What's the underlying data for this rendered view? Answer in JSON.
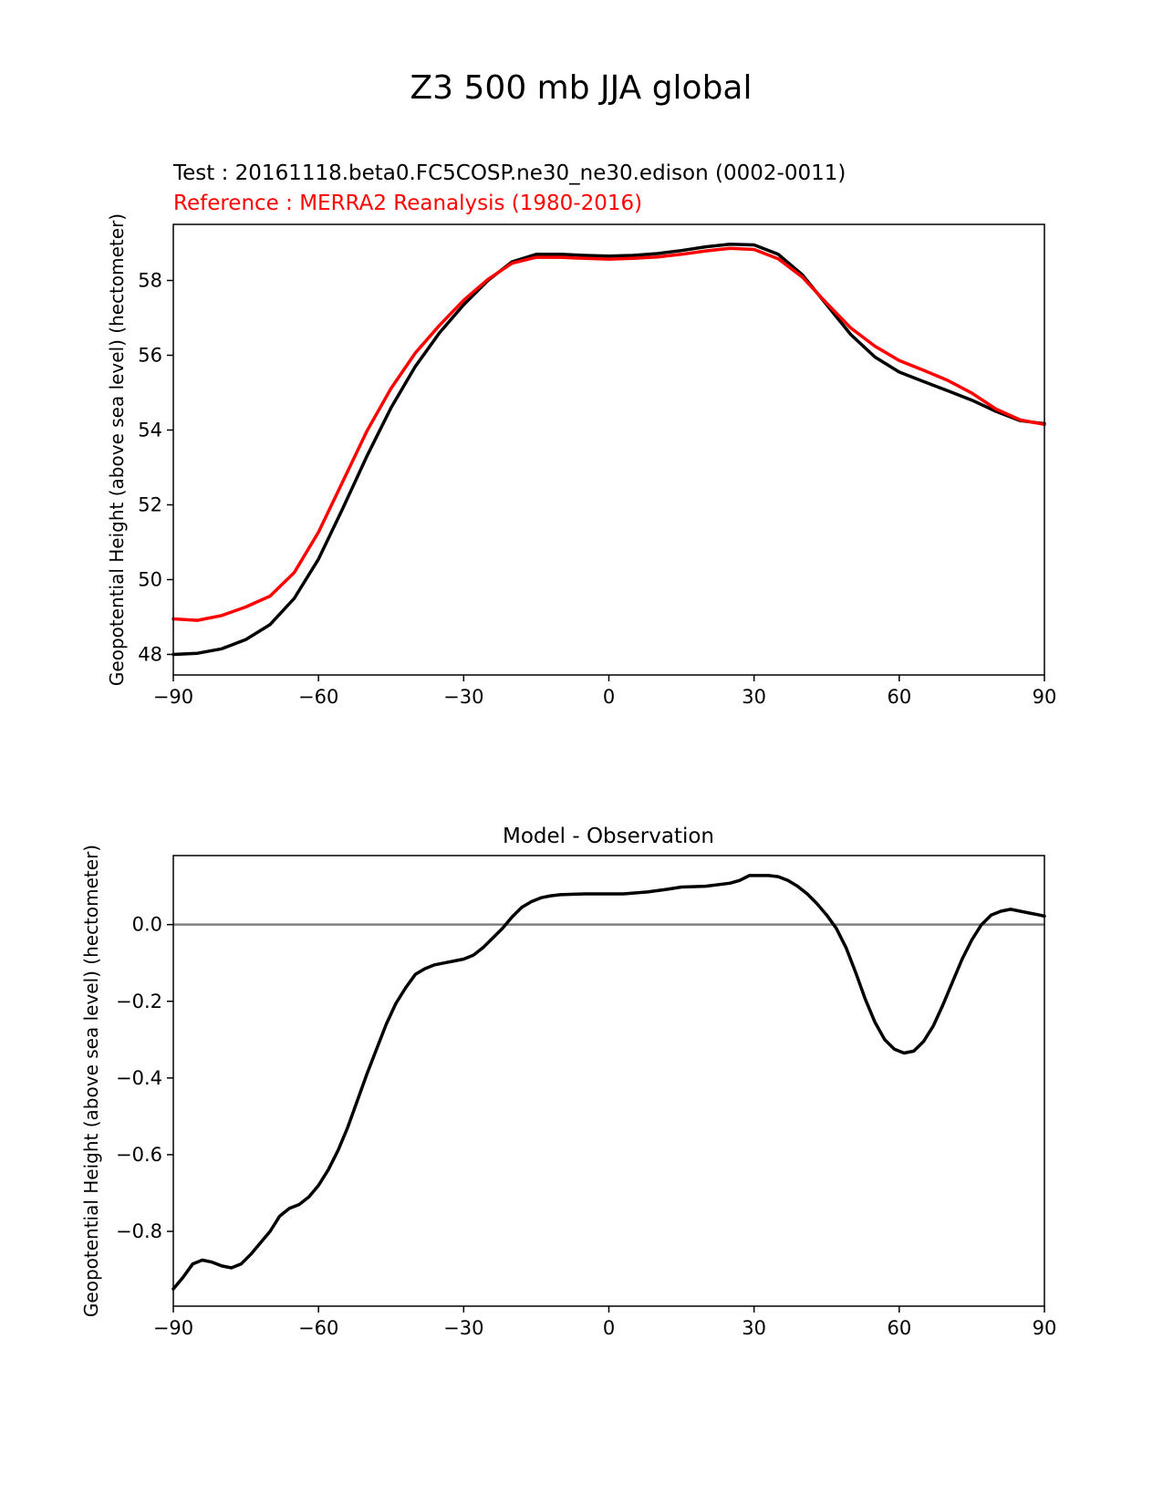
{
  "figure_title": "Z3 500 mb JJA global",
  "colors": {
    "test": "#000000",
    "reference": "#ff0000",
    "zero_line": "#808080"
  },
  "chart_data": [
    {
      "type": "line",
      "test_label": "Test : 20161118.beta0.FC5COSP.ne30_ne30.edison (0002-0011)",
      "reference_label": "Reference : MERRA2 Reanalysis (1980-2016)",
      "xlabel": "",
      "ylabel": "Geopotential Height (above sea level) (hectometer)",
      "xlim": [
        -90,
        90
      ],
      "ylim": [
        47.45,
        59.5
      ],
      "xticks": [
        -90,
        -60,
        -30,
        0,
        30,
        60,
        90
      ],
      "xtick_labels": [
        "−90",
        "−60",
        "−30",
        "0",
        "30",
        "60",
        "90"
      ],
      "yticks": [
        48,
        50,
        52,
        54,
        56,
        58
      ],
      "ytick_labels": [
        "48",
        "50",
        "52",
        "54",
        "56",
        "58"
      ],
      "series": [
        {
          "name": "Test",
          "color": "#000000",
          "x": [
            -90,
            -85,
            -80,
            -75,
            -70,
            -65,
            -60,
            -55,
            -50,
            -45,
            -40,
            -35,
            -30,
            -25,
            -20,
            -15,
            -10,
            -5,
            0,
            5,
            10,
            15,
            20,
            25,
            30,
            35,
            40,
            45,
            50,
            55,
            60,
            65,
            70,
            75,
            80,
            85,
            90
          ],
          "y": [
            48.0,
            48.03,
            48.15,
            48.4,
            48.8,
            49.5,
            50.55,
            51.9,
            53.3,
            54.6,
            55.7,
            56.6,
            57.35,
            58.0,
            58.5,
            58.7,
            58.7,
            58.67,
            58.65,
            58.67,
            58.72,
            58.8,
            58.9,
            58.97,
            58.95,
            58.7,
            58.15,
            57.35,
            56.55,
            55.95,
            55.55,
            55.3,
            55.05,
            54.8,
            54.5,
            54.25,
            54.17
          ]
        },
        {
          "name": "Reference",
          "color": "#ff0000",
          "x": [
            -90,
            -85,
            -80,
            -75,
            -70,
            -65,
            -60,
            -55,
            -50,
            -45,
            -40,
            -35,
            -30,
            -25,
            -20,
            -15,
            -10,
            -5,
            0,
            5,
            10,
            15,
            20,
            25,
            30,
            35,
            40,
            45,
            50,
            55,
            60,
            65,
            70,
            75,
            80,
            85,
            90
          ],
          "y": [
            48.95,
            48.91,
            49.04,
            49.27,
            49.56,
            50.19,
            51.27,
            52.62,
            53.97,
            55.12,
            56.06,
            56.8,
            57.47,
            58.03,
            58.46,
            58.62,
            58.62,
            58.59,
            58.57,
            58.59,
            58.63,
            58.7,
            58.79,
            58.86,
            58.83,
            58.58,
            58.09,
            57.39,
            56.73,
            56.24,
            55.86,
            55.6,
            55.33,
            54.99,
            54.56,
            54.27,
            54.15
          ]
        }
      ]
    },
    {
      "type": "line",
      "title": "Model - Observation",
      "xlabel": "",
      "ylabel": "Geopotential Height (above sea level) (hectometer)",
      "xlim": [
        -90,
        90
      ],
      "ylim": [
        -0.995,
        0.18
      ],
      "xticks": [
        -90,
        -60,
        -30,
        0,
        30,
        60,
        90
      ],
      "xtick_labels": [
        "−90",
        "−60",
        "−30",
        "0",
        "30",
        "60",
        "90"
      ],
      "yticks": [
        0.0,
        -0.2,
        -0.4,
        -0.6,
        -0.8
      ],
      "ytick_labels": [
        "0.0",
        "−0.2",
        "−0.4",
        "−0.6",
        "−0.8"
      ],
      "zero_line": 0.0,
      "series": [
        {
          "name": "Model - Observation",
          "color": "#000000",
          "x": [
            -90,
            -88,
            -86,
            -84,
            -82,
            -80,
            -78,
            -76,
            -74,
            -72,
            -70,
            -68,
            -66,
            -64,
            -62,
            -60,
            -58,
            -56,
            -54,
            -52,
            -50,
            -48,
            -46,
            -44,
            -42,
            -40,
            -38,
            -36,
            -34,
            -32,
            -30,
            -28,
            -26,
            -24,
            -22,
            -20,
            -18,
            -16,
            -14,
            -12,
            -10,
            -5,
            0,
            3,
            8,
            12,
            15,
            20,
            25,
            27,
            29,
            31,
            33,
            35,
            37,
            39,
            41,
            43,
            45,
            47,
            49,
            51,
            53,
            55,
            57,
            59,
            61,
            63,
            65,
            67,
            69,
            71,
            73,
            75,
            77,
            79,
            81,
            83,
            85,
            87,
            89,
            90
          ],
          "y": [
            -0.95,
            -0.92,
            -0.885,
            -0.875,
            -0.88,
            -0.89,
            -0.895,
            -0.885,
            -0.86,
            -0.83,
            -0.8,
            -0.76,
            -0.74,
            -0.73,
            -0.71,
            -0.68,
            -0.64,
            -0.59,
            -0.53,
            -0.46,
            -0.39,
            -0.325,
            -0.26,
            -0.205,
            -0.165,
            -0.13,
            -0.115,
            -0.105,
            -0.1,
            -0.095,
            -0.09,
            -0.08,
            -0.06,
            -0.035,
            -0.01,
            0.02,
            0.045,
            0.06,
            0.07,
            0.075,
            0.078,
            0.08,
            0.08,
            0.08,
            0.085,
            0.092,
            0.098,
            0.1,
            0.108,
            0.115,
            0.128,
            0.128,
            0.128,
            0.125,
            0.115,
            0.1,
            0.08,
            0.055,
            0.025,
            -0.01,
            -0.06,
            -0.125,
            -0.195,
            -0.255,
            -0.3,
            -0.325,
            -0.335,
            -0.33,
            -0.305,
            -0.265,
            -0.21,
            -0.15,
            -0.09,
            -0.04,
            0.0,
            0.025,
            0.035,
            0.04,
            0.035,
            0.03,
            0.025,
            0.022
          ]
        }
      ]
    }
  ]
}
